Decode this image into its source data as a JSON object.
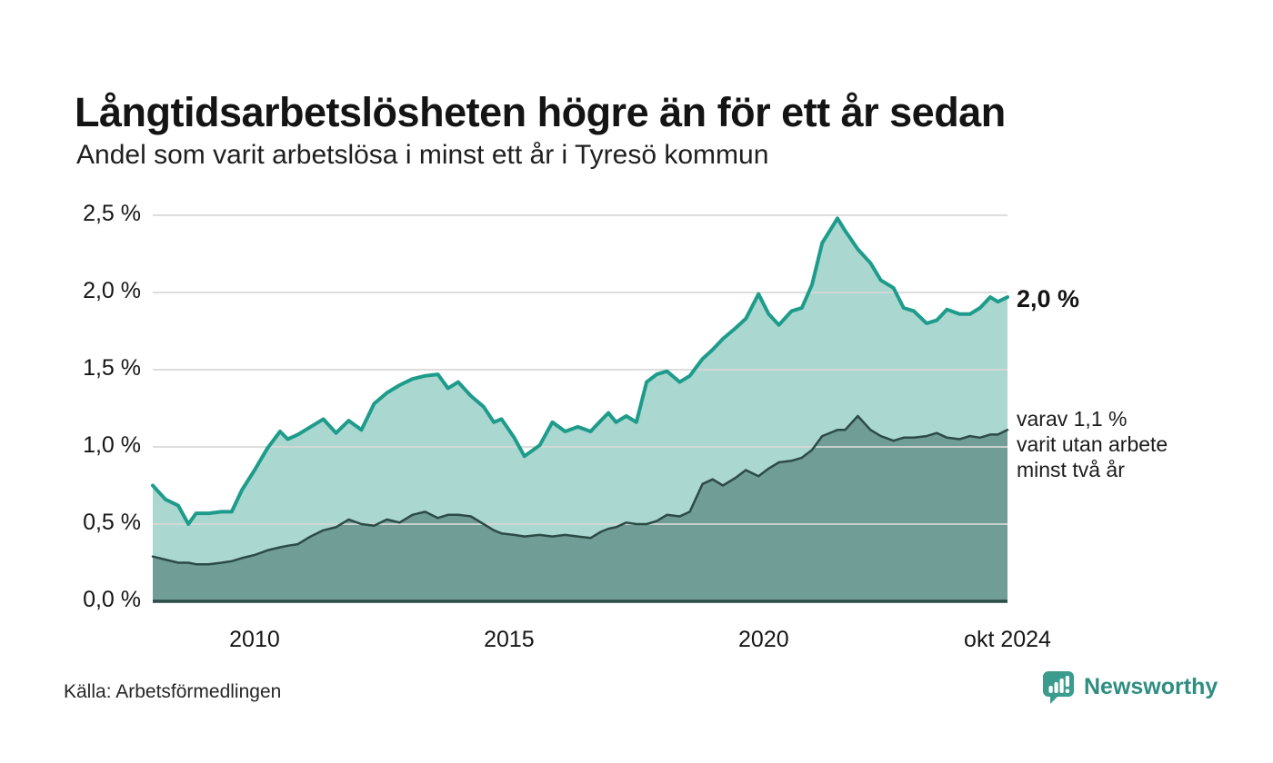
{
  "header": {
    "title": "Långtidsarbetslösheten högre än för ett år sedan",
    "subtitle": "Andel som varit arbetslösa i minst ett år i Tyresö kommun"
  },
  "annotations": {
    "series1_end_label": "2,0 %",
    "series2_end_label": "varav 1,1 %\nvarit utan arbete\nminst två år"
  },
  "footer": {
    "source": "Källa: Arbetsförmedlingen",
    "logo_text": "Newsworthy"
  },
  "colors": {
    "series1_stroke": "#1e9c8b",
    "series1_fill": "#aad7cf",
    "series2_stroke": "#2c4b47",
    "series2_fill": "#709d96",
    "gridline": "#d8d8d8",
    "baseline": "#2c4b47",
    "text": "#161616",
    "logo_teal": "#3a9c8d"
  },
  "chart_data": {
    "type": "area",
    "title": "Långtidsarbetslösheten högre än för ett år sedan",
    "subtitle": "Andel som varit arbetslösa i minst ett år i Tyresö kommun",
    "unit": "%",
    "xlim": [
      2008.0,
      2024.79
    ],
    "ylim": [
      0,
      2.5
    ],
    "grid": true,
    "legend_position": "end-labels",
    "yticks": [
      {
        "value": 0.0,
        "label": "0,0 %"
      },
      {
        "value": 0.5,
        "label": "0,5 %"
      },
      {
        "value": 1.0,
        "label": "1,0 %"
      },
      {
        "value": 1.5,
        "label": "1,5 %"
      },
      {
        "value": 2.0,
        "label": "2,0 %"
      },
      {
        "value": 2.5,
        "label": "2,5 %"
      }
    ],
    "xticks": [
      {
        "value": 2010,
        "label": "2010"
      },
      {
        "value": 2015,
        "label": "2015"
      },
      {
        "value": 2020,
        "label": "2020"
      },
      {
        "value": 2024.79,
        "label": "okt 2024"
      }
    ],
    "x": [
      2008.0,
      2008.25,
      2008.5,
      2008.7,
      2008.85,
      2009.1,
      2009.35,
      2009.55,
      2009.75,
      2010.0,
      2010.25,
      2010.5,
      2010.65,
      2010.85,
      2011.1,
      2011.35,
      2011.6,
      2011.85,
      2012.1,
      2012.35,
      2012.6,
      2012.85,
      2013.1,
      2013.35,
      2013.6,
      2013.8,
      2014.0,
      2014.25,
      2014.5,
      2014.7,
      2014.85,
      2015.1,
      2015.3,
      2015.6,
      2015.85,
      2016.1,
      2016.35,
      2016.6,
      2016.8,
      2016.95,
      2017.1,
      2017.3,
      2017.5,
      2017.7,
      2017.9,
      2018.1,
      2018.35,
      2018.55,
      2018.8,
      2019.0,
      2019.2,
      2019.45,
      2019.65,
      2019.9,
      2020.1,
      2020.3,
      2020.55,
      2020.75,
      2020.95,
      2021.15,
      2021.45,
      2021.6,
      2021.85,
      2022.1,
      2022.3,
      2022.55,
      2022.75,
      2022.95,
      2023.2,
      2023.4,
      2023.6,
      2023.85,
      2024.05,
      2024.25,
      2024.45,
      2024.6,
      2024.79
    ],
    "series": [
      {
        "name": "Arbetslösa minst ett år",
        "end_value_label": "2,0 %",
        "values": [
          0.75,
          0.66,
          0.62,
          0.5,
          0.57,
          0.57,
          0.58,
          0.58,
          0.72,
          0.85,
          0.99,
          1.1,
          1.05,
          1.08,
          1.13,
          1.18,
          1.09,
          1.17,
          1.11,
          1.28,
          1.35,
          1.4,
          1.44,
          1.46,
          1.47,
          1.38,
          1.42,
          1.33,
          1.26,
          1.16,
          1.18,
          1.06,
          0.94,
          1.01,
          1.16,
          1.1,
          1.13,
          1.1,
          1.17,
          1.22,
          1.16,
          1.2,
          1.16,
          1.42,
          1.47,
          1.49,
          1.42,
          1.46,
          1.57,
          1.63,
          1.7,
          1.77,
          1.83,
          1.99,
          1.86,
          1.79,
          1.88,
          1.9,
          2.05,
          2.32,
          2.48,
          2.4,
          2.28,
          2.19,
          2.08,
          2.03,
          1.9,
          1.88,
          1.8,
          1.82,
          1.89,
          1.86,
          1.86,
          1.9,
          1.97,
          1.94,
          1.97
        ]
      },
      {
        "name": "Varav utan arbete minst två år",
        "end_value_label": "varav 1,1 %",
        "values": [
          0.29,
          0.27,
          0.25,
          0.25,
          0.24,
          0.24,
          0.25,
          0.26,
          0.28,
          0.3,
          0.33,
          0.35,
          0.36,
          0.37,
          0.42,
          0.46,
          0.48,
          0.53,
          0.5,
          0.49,
          0.53,
          0.51,
          0.56,
          0.58,
          0.54,
          0.56,
          0.56,
          0.55,
          0.5,
          0.46,
          0.44,
          0.43,
          0.42,
          0.43,
          0.42,
          0.43,
          0.42,
          0.41,
          0.45,
          0.47,
          0.48,
          0.51,
          0.5,
          0.5,
          0.52,
          0.56,
          0.55,
          0.58,
          0.76,
          0.79,
          0.75,
          0.8,
          0.85,
          0.81,
          0.86,
          0.9,
          0.91,
          0.93,
          0.98,
          1.07,
          1.11,
          1.11,
          1.2,
          1.11,
          1.07,
          1.04,
          1.06,
          1.06,
          1.07,
          1.09,
          1.06,
          1.05,
          1.07,
          1.06,
          1.08,
          1.08,
          1.11
        ]
      }
    ]
  }
}
